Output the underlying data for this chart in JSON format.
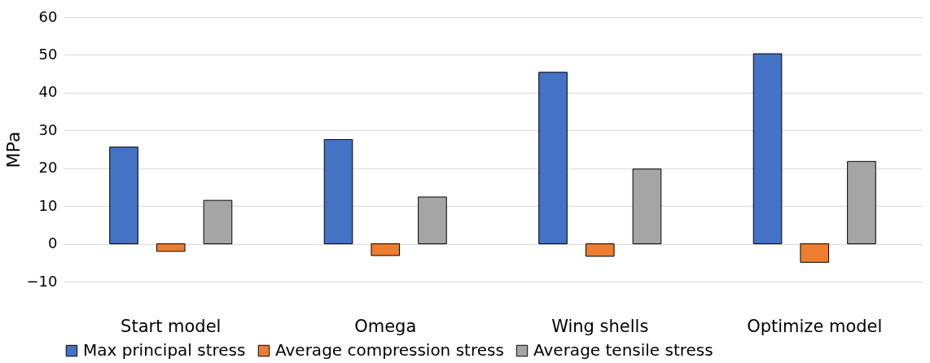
{
  "chart_data": {
    "type": "bar",
    "ylabel": "MPa",
    "categories": [
      "Start model",
      "Omega",
      "Wing shells",
      "Optimize model"
    ],
    "series": [
      {
        "name": "Max principal stress",
        "color": "#4472c4",
        "values": [
          25.6,
          27.6,
          45.4,
          50.3
        ]
      },
      {
        "name": "Average compression stress",
        "color": "#ed7d31",
        "values": [
          -2.0,
          -3.1,
          -3.3,
          -4.9
        ]
      },
      {
        "name": "Average tensile stress",
        "color": "#a5a5a5",
        "values": [
          11.5,
          12.4,
          19.8,
          21.8
        ]
      }
    ],
    "ylim": [
      -10,
      60
    ],
    "yticks": [
      -10,
      0,
      10,
      20,
      30,
      40,
      50,
      60
    ],
    "grid": "y",
    "legend": "bottom"
  }
}
